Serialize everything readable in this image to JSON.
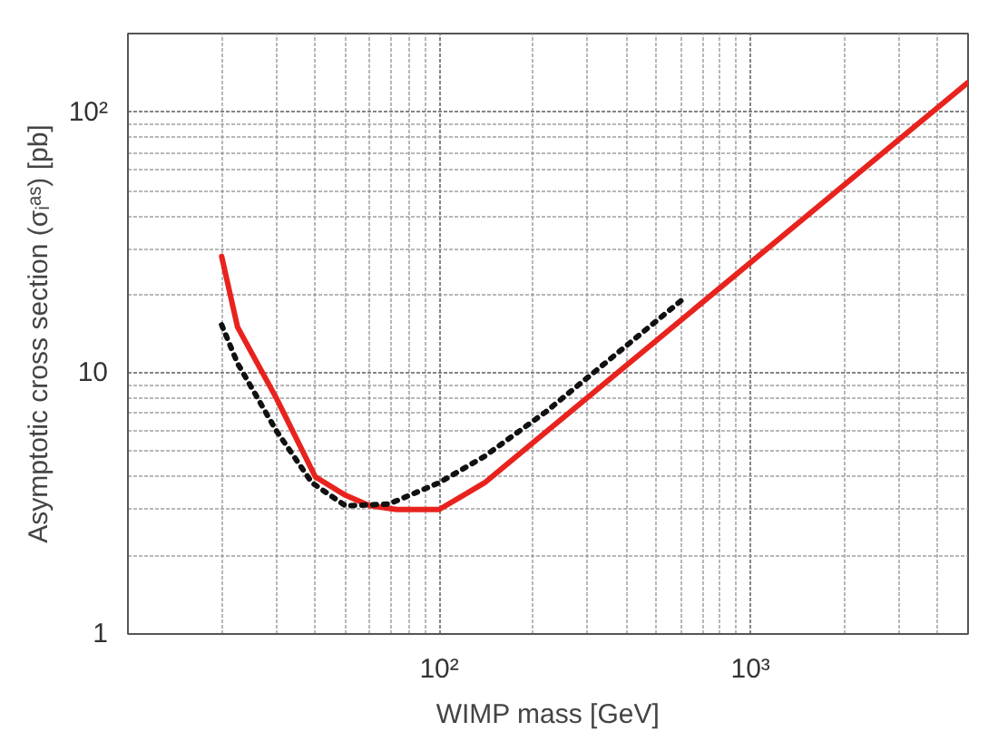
{
  "chart_data": {
    "type": "line",
    "xlabel": "WIMP mass [GeV]",
    "ylabel": "Asymptotic cross section (σᵢᵃˢ) [pb]",
    "log": "xy",
    "grid": true,
    "xlim": [
      10,
      5000
    ],
    "ylim": [
      1,
      200
    ],
    "xticks": [
      {
        "value": 100,
        "label": "10²"
      },
      {
        "value": 1000,
        "label": "10³"
      }
    ],
    "yticks": [
      1,
      10,
      {
        "value": 100,
        "label": "10²"
      }
    ],
    "series": [
      {
        "color": "#e8231e",
        "line_style": "solid",
        "x": [
          20,
          22.5,
          30,
          40,
          50,
          60,
          73,
          100,
          140,
          5000
        ],
        "values": [
          28,
          15,
          8,
          4,
          3.4,
          3.1,
          3.0,
          3.0,
          3.8,
          130
        ]
      },
      {
        "color": "#111111",
        "line_style": "dotted",
        "x": [
          20,
          22.5,
          30,
          39,
          50,
          69,
          100,
          140,
          220,
          607
        ],
        "values": [
          15.3,
          10.9,
          6.0,
          3.8,
          3.1,
          3.15,
          3.8,
          4.8,
          7.1,
          19.2
        ]
      }
    ]
  }
}
